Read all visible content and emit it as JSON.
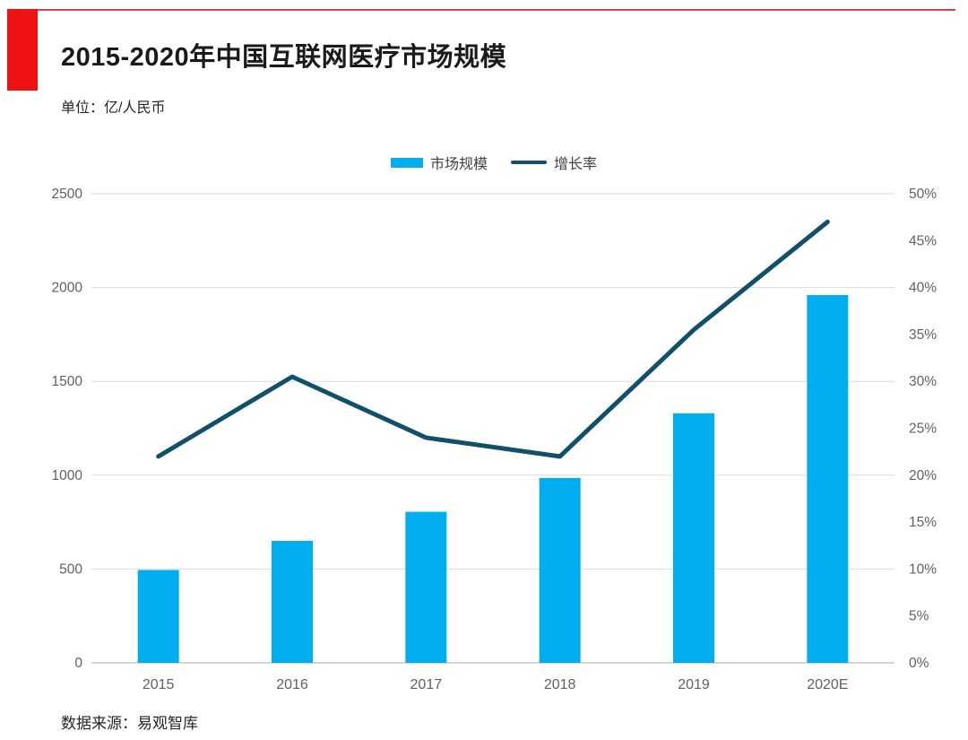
{
  "header": {
    "title": "2015-2020年中国互联网医疗市场规模",
    "unit_label": "单位：亿/人民币"
  },
  "legend": {
    "bar_label": "市场规模",
    "line_label": "增长率"
  },
  "footer": {
    "source": "数据来源：易观智库"
  },
  "colors": {
    "bar": "#00AEEF",
    "line": "#10506B",
    "accent_red": "#EE1212",
    "top_rule_red": "#D2464C",
    "grid": "#DBDBDB",
    "baseline": "#C9C9C9",
    "axis_text": "#616161",
    "title_text": "#1A1A1A"
  },
  "chart_data": {
    "type": "bar",
    "subtype": "combo-bar-line-dual-axis",
    "title": "2015-2020年中国互联网医疗市场规模",
    "unit": "亿/人民币",
    "categories": [
      "2015",
      "2016",
      "2017",
      "2018",
      "2019",
      "2020E"
    ],
    "series": [
      {
        "name": "市场规模",
        "type": "bar",
        "axis": "left",
        "values": [
          495,
          650,
          805,
          985,
          1330,
          1960
        ]
      },
      {
        "name": "增长率",
        "type": "line",
        "axis": "right",
        "values_pct": [
          22,
          30.5,
          24,
          22,
          35.5,
          47
        ]
      }
    ],
    "left_axis": {
      "ticks": [
        0,
        500,
        1000,
        1500,
        2000,
        2500
      ],
      "min": 0,
      "max": 2500
    },
    "right_axis": {
      "tick_labels": [
        "0%",
        "5%",
        "10%",
        "15%",
        "20%",
        "25%",
        "30%",
        "35%",
        "40%",
        "45%",
        "50%"
      ],
      "min_pct": 0,
      "max_pct": 50
    },
    "grid": true,
    "legend_position": "top-center",
    "source": "数据来源：易观智库"
  }
}
